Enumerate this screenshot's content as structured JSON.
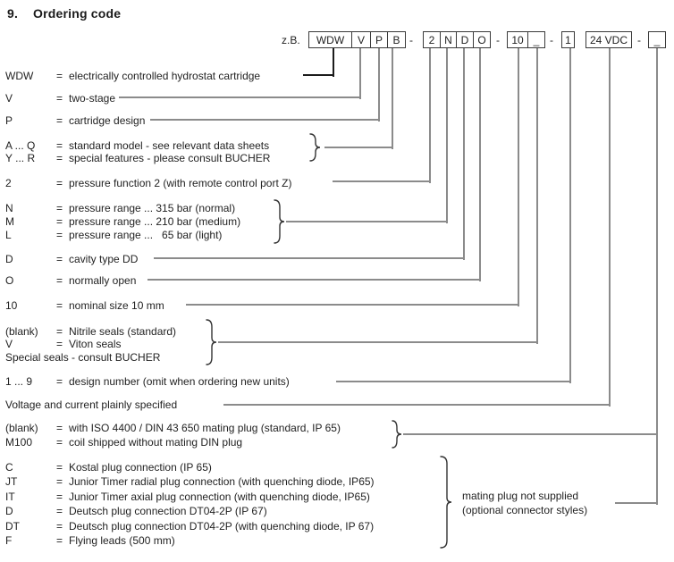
{
  "heading": {
    "number": "9.",
    "title": "Ordering code"
  },
  "example_prefix": "z.B.",
  "code_segments": [
    {
      "type": "group",
      "cells": [
        "WDW",
        "V",
        "P",
        "B"
      ]
    },
    {
      "type": "dash",
      "text": "-"
    },
    {
      "type": "group",
      "cells": [
        "2",
        "N",
        "D",
        "O"
      ]
    },
    {
      "type": "dash",
      "text": "-"
    },
    {
      "type": "group",
      "cells": [
        "10",
        "_"
      ]
    },
    {
      "type": "dash",
      "text": "-"
    },
    {
      "type": "box",
      "text": "1"
    },
    {
      "type": "box",
      "text": "24 VDC"
    },
    {
      "type": "dash",
      "text": "-"
    },
    {
      "type": "box",
      "text": "_"
    }
  ],
  "rows": [
    {
      "label": "WDW",
      "eq": "=",
      "desc": "electrically controlled hydrostat cartridge"
    },
    {
      "label": "V",
      "eq": "=",
      "desc": "two-stage"
    },
    {
      "label": "P",
      "eq": "=",
      "desc": "cartridge design"
    },
    {
      "label": "A ... Q",
      "eq": "=",
      "desc": "standard model - see relevant data sheets"
    },
    {
      "label": "Y ... R",
      "eq": "=",
      "desc": "special features - please consult BUCHER"
    },
    {
      "label": "2",
      "eq": "=",
      "desc": "pressure function 2 (with remote control port Z)"
    },
    {
      "label": "N",
      "eq": "=",
      "desc": "pressure range ... 315 bar (normal)"
    },
    {
      "label": "M",
      "eq": "=",
      "desc": "pressure range ... 210 bar (medium)"
    },
    {
      "label": "L",
      "eq": "=",
      "desc": "pressure range ...   65 bar (light)"
    },
    {
      "label": "D",
      "eq": "=",
      "desc": "cavity type DD"
    },
    {
      "label": "O",
      "eq": "=",
      "desc": "normally open"
    },
    {
      "label": "10",
      "eq": "=",
      "desc": "nominal size 10 mm"
    },
    {
      "label": "(blank)",
      "eq": "=",
      "desc": "Nitrile seals (standard)"
    },
    {
      "label": "V",
      "eq": "=",
      "desc": "Viton seals"
    },
    {
      "label": "",
      "eq": "",
      "desc": "Special seals - consult BUCHER"
    },
    {
      "label": "1 ... 9",
      "eq": "=",
      "desc": "design number (omit when ordering new units)"
    },
    {
      "label": "",
      "eq": "",
      "desc": "Voltage and current plainly specified"
    },
    {
      "label": "(blank)",
      "eq": "=",
      "desc": "with ISO 4400 / DIN 43 650 mating plug (standard, IP 65)"
    },
    {
      "label": "M100",
      "eq": "=",
      "desc": "coil shipped without mating DIN plug"
    },
    {
      "label": "C",
      "eq": "=",
      "desc": "Kostal plug connection (IP 65)"
    },
    {
      "label": "JT",
      "eq": "=",
      "desc": "Junior Timer radial plug connection (with quenching diode, IP65)"
    },
    {
      "label": "IT",
      "eq": "=",
      "desc": "Junior Timer axial plug connection (with quenching diode, IP65)"
    },
    {
      "label": "D",
      "eq": "=",
      "desc": "Deutsch plug connection DT04-2P (IP 67)"
    },
    {
      "label": "DT",
      "eq": "=",
      "desc": "Deutsch plug connection DT04-2P (with quenching diode, IP 67)"
    },
    {
      "label": "F",
      "eq": "=",
      "desc": "Flying leads (500 mm)"
    }
  ],
  "side_note": {
    "line1": "mating plug not supplied",
    "line2": "(optional connector styles)"
  },
  "colors": {
    "background": "#ffffff",
    "text": "#222222",
    "line_gray": "#8b8b8b",
    "line_dark": "#1c1c1c",
    "box_border": "#3a3a3a"
  }
}
